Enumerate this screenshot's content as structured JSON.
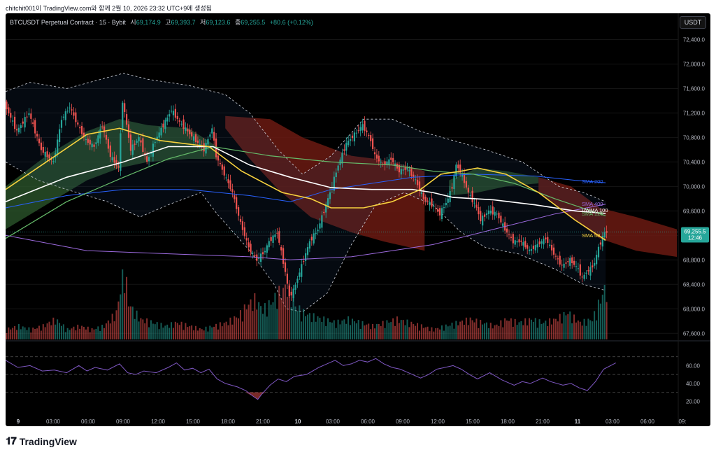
{
  "caption": "chitchit001이 TradingView.com와 함께 2월 10, 2026 23:32 UTC+9에 생성됨",
  "header": {
    "symbol": "BTCUSDT Perpetual Contract · 15 · Bybit",
    "open_label": "시",
    "open": "69,174.9",
    "high_label": "고",
    "high": "69,393.7",
    "low_label": "저",
    "low": "69,123.6",
    "close_label": "종",
    "close": "69,255.5",
    "change": "+80.6 (+0.12%)"
  },
  "currency_button": "USDT",
  "brand": "TradingView",
  "colors": {
    "up": "#26a69a",
    "down": "#ef5350",
    "sma50": "#f7d23e",
    "sma100": "#ffffff",
    "sma120": "#66bb6a",
    "sma200": "#2962ff",
    "sma400": "#9c6ade",
    "rsi": "#7e57c2",
    "bb": "#d1d4dc",
    "cloud_bull": "#2e5a2e",
    "cloud_bear": "#6b1a12"
  },
  "chart_data": {
    "type": "candlestick",
    "symbol": "BTCUSDT",
    "timeframe": "15",
    "price_axis": {
      "ylim": [
        67500,
        72600
      ],
      "ticks": [
        "72,400.0",
        "72,000.0",
        "71,600.0",
        "71,200.0",
        "70,800.0",
        "70,400.0",
        "70,000.0",
        "69,600.0",
        "69,200.0",
        "68,800.0",
        "68,400.0",
        "68,000.0",
        "67,600.0"
      ]
    },
    "time_axis": {
      "ticks": [
        "9",
        "03:00",
        "06:00",
        "09:00",
        "12:00",
        "15:00",
        "18:00",
        "21:00",
        "10",
        "03:00",
        "06:00",
        "09:00",
        "12:00",
        "15:00",
        "18:00",
        "21:00",
        "11",
        "03:00",
        "06:00",
        "09:"
      ]
    },
    "last_price": {
      "value": "69,255.5",
      "countdown": "12:46"
    },
    "indicators": [
      {
        "name": "SMA 200",
        "value": 70060
      },
      {
        "name": "SMA 400",
        "value": 69710
      },
      {
        "name": "VWMA 100",
        "value": 69560
      },
      {
        "name": "SMA 120",
        "value": 69520
      },
      {
        "name": "SMA 50",
        "value": 69120
      }
    ],
    "price_path": [
      [
        0,
        71350
      ],
      [
        6,
        70900
      ],
      [
        12,
        71200
      ],
      [
        18,
        70600
      ],
      [
        24,
        70400
      ],
      [
        28,
        71100
      ],
      [
        32,
        71300
      ],
      [
        36,
        71000
      ],
      [
        40,
        70750
      ],
      [
        44,
        70650
      ],
      [
        48,
        71000
      ],
      [
        52,
        70500
      ],
      [
        56,
        70300
      ],
      [
        58,
        71400
      ],
      [
        62,
        70600
      ],
      [
        66,
        70800
      ],
      [
        70,
        70400
      ],
      [
        74,
        70750
      ],
      [
        78,
        71000
      ],
      [
        82,
        71250
      ],
      [
        86,
        71050
      ],
      [
        90,
        70900
      ],
      [
        94,
        70750
      ],
      [
        98,
        70600
      ],
      [
        102,
        70950
      ],
      [
        104,
        70500
      ],
      [
        108,
        70200
      ],
      [
        112,
        69900
      ],
      [
        116,
        69400
      ],
      [
        120,
        69000
      ],
      [
        124,
        68800
      ],
      [
        128,
        68950
      ],
      [
        130,
        69100
      ],
      [
        134,
        69250
      ],
      [
        138,
        68600
      ],
      [
        140,
        68200
      ],
      [
        142,
        68300
      ],
      [
        146,
        68700
      ],
      [
        150,
        69100
      ],
      [
        154,
        69300
      ],
      [
        158,
        69700
      ],
      [
        160,
        69900
      ],
      [
        164,
        70350
      ],
      [
        168,
        70700
      ],
      [
        172,
        70850
      ],
      [
        176,
        71000
      ],
      [
        180,
        70750
      ],
      [
        182,
        70500
      ],
      [
        186,
        70350
      ],
      [
        190,
        70450
      ],
      [
        194,
        70250
      ],
      [
        198,
        70300
      ],
      [
        202,
        70100
      ],
      [
        206,
        69800
      ],
      [
        210,
        69700
      ],
      [
        214,
        69550
      ],
      [
        218,
        69800
      ],
      [
        220,
        70000
      ],
      [
        222,
        70350
      ],
      [
        224,
        70250
      ],
      [
        228,
        69900
      ],
      [
        232,
        69650
      ],
      [
        234,
        69450
      ],
      [
        238,
        69600
      ],
      [
        242,
        69550
      ],
      [
        246,
        69300
      ],
      [
        250,
        69100
      ],
      [
        254,
        69100
      ],
      [
        258,
        68950
      ],
      [
        262,
        69050
      ],
      [
        266,
        69150
      ],
      [
        270,
        68900
      ],
      [
        274,
        68700
      ],
      [
        278,
        68800
      ],
      [
        282,
        68650
      ],
      [
        284,
        68500
      ],
      [
        286,
        68600
      ],
      [
        288,
        68650
      ],
      [
        290,
        68750
      ],
      [
        292,
        69000
      ],
      [
        295,
        69250
      ]
    ],
    "sma50": [
      [
        0,
        69950
      ],
      [
        20,
        70400
      ],
      [
        40,
        70850
      ],
      [
        56,
        70950
      ],
      [
        76,
        70750
      ],
      [
        100,
        70650
      ],
      [
        116,
        70250
      ],
      [
        136,
        69900
      ],
      [
        150,
        69800
      ],
      [
        160,
        69650
      ],
      [
        176,
        69650
      ],
      [
        190,
        69750
      ],
      [
        204,
        69950
      ],
      [
        214,
        70200
      ],
      [
        224,
        70250
      ],
      [
        232,
        70300
      ],
      [
        246,
        70200
      ],
      [
        262,
        69900
      ],
      [
        280,
        69450
      ],
      [
        295,
        69120
      ]
    ],
    "sma100": [
      [
        0,
        69750
      ],
      [
        30,
        70150
      ],
      [
        58,
        70400
      ],
      [
        80,
        70650
      ],
      [
        102,
        70650
      ],
      [
        120,
        70350
      ],
      [
        140,
        70150
      ],
      [
        160,
        69980
      ],
      [
        180,
        69950
      ],
      [
        200,
        69950
      ],
      [
        210,
        69900
      ],
      [
        220,
        69820
      ],
      [
        240,
        69780
      ],
      [
        260,
        69700
      ],
      [
        280,
        69600
      ],
      [
        295,
        69560
      ]
    ],
    "sma120": [
      [
        0,
        69150
      ],
      [
        30,
        69750
      ],
      [
        58,
        70150
      ],
      [
        80,
        70450
      ],
      [
        102,
        70650
      ],
      [
        130,
        70500
      ],
      [
        160,
        70400
      ],
      [
        190,
        70350
      ],
      [
        210,
        70250
      ],
      [
        230,
        70200
      ],
      [
        250,
        70050
      ],
      [
        270,
        69800
      ],
      [
        295,
        69520
      ]
    ],
    "sma200": [
      [
        0,
        69650
      ],
      [
        30,
        69850
      ],
      [
        58,
        69950
      ],
      [
        90,
        69950
      ],
      [
        120,
        69850
      ],
      [
        140,
        69750
      ],
      [
        160,
        69950
      ],
      [
        180,
        70050
      ],
      [
        200,
        70150
      ],
      [
        230,
        70200
      ],
      [
        260,
        70170
      ],
      [
        280,
        70100
      ],
      [
        295,
        70060
      ]
    ],
    "sma400": [
      [
        0,
        69200
      ],
      [
        40,
        68950
      ],
      [
        80,
        68900
      ],
      [
        120,
        68850
      ],
      [
        140,
        68800
      ],
      [
        170,
        68850
      ],
      [
        190,
        68950
      ],
      [
        210,
        69050
      ],
      [
        240,
        69300
      ],
      [
        270,
        69550
      ],
      [
        295,
        69710
      ]
    ],
    "bb_upper": [
      [
        0,
        71550
      ],
      [
        12,
        71700
      ],
      [
        30,
        71600
      ],
      [
        58,
        71850
      ],
      [
        70,
        71750
      ],
      [
        90,
        71650
      ],
      [
        108,
        71500
      ],
      [
        120,
        71200
      ],
      [
        134,
        70600
      ],
      [
        146,
        70200
      ],
      [
        160,
        70500
      ],
      [
        176,
        71100
      ],
      [
        190,
        71100
      ],
      [
        204,
        70900
      ],
      [
        220,
        70750
      ],
      [
        236,
        70600
      ],
      [
        254,
        70400
      ],
      [
        272,
        70000
      ],
      [
        284,
        69900
      ],
      [
        295,
        69750
      ]
    ],
    "bb_lower": [
      [
        0,
        70400
      ],
      [
        16,
        70100
      ],
      [
        30,
        69950
      ],
      [
        50,
        69750
      ],
      [
        66,
        69500
      ],
      [
        80,
        69700
      ],
      [
        96,
        69900
      ],
      [
        104,
        69550
      ],
      [
        120,
        68950
      ],
      [
        132,
        68400
      ],
      [
        138,
        68000
      ],
      [
        146,
        67950
      ],
      [
        158,
        68250
      ],
      [
        170,
        69050
      ],
      [
        182,
        69700
      ],
      [
        196,
        69900
      ],
      [
        210,
        69700
      ],
      [
        224,
        69250
      ],
      [
        236,
        69000
      ],
      [
        252,
        68900
      ],
      [
        270,
        68650
      ],
      [
        284,
        68400
      ],
      [
        295,
        68300
      ]
    ],
    "cloud": [
      {
        "kind": "bull",
        "top": [
          [
            0,
            70000
          ],
          [
            20,
            70500
          ],
          [
            40,
            70900
          ],
          [
            56,
            71100
          ],
          [
            70,
            71000
          ],
          [
            90,
            70950
          ],
          [
            104,
            70650
          ]
        ],
        "bot": [
          [
            0,
            69300
          ],
          [
            20,
            69700
          ],
          [
            40,
            70100
          ],
          [
            56,
            70300
          ],
          [
            70,
            70400
          ],
          [
            90,
            70450
          ],
          [
            104,
            70450
          ]
        ]
      },
      {
        "kind": "bear",
        "top": [
          [
            108,
            71150
          ],
          [
            130,
            71100
          ],
          [
            146,
            70800
          ],
          [
            158,
            70650
          ],
          [
            170,
            70500
          ],
          [
            182,
            70450
          ],
          [
            196,
            70350
          ],
          [
            206,
            70250
          ]
        ],
        "bot": [
          [
            108,
            70950
          ],
          [
            120,
            70450
          ],
          [
            134,
            69950
          ],
          [
            150,
            69500
          ],
          [
            170,
            69250
          ],
          [
            186,
            69100
          ],
          [
            206,
            68950
          ]
        ]
      },
      {
        "kind": "bull",
        "top": [
          [
            218,
            70100
          ],
          [
            232,
            70300
          ],
          [
            246,
            70250
          ],
          [
            262,
            70150
          ]
        ],
        "bot": [
          [
            218,
            69850
          ],
          [
            232,
            69900
          ],
          [
            246,
            70000
          ],
          [
            262,
            70050
          ]
        ]
      },
      {
        "kind": "bear",
        "top": [
          [
            262,
            70150
          ],
          [
            278,
            70000
          ],
          [
            292,
            69650
          ],
          [
            310,
            69500
          ],
          [
            330,
            69300
          ]
        ],
        "bot": [
          [
            262,
            69900
          ],
          [
            278,
            69500
          ],
          [
            292,
            69150
          ],
          [
            310,
            68950
          ],
          [
            330,
            68850
          ]
        ]
      }
    ],
    "volume": [
      [
        0,
        3
      ],
      [
        6,
        4
      ],
      [
        12,
        3
      ],
      [
        18,
        4
      ],
      [
        24,
        6
      ],
      [
        30,
        3
      ],
      [
        36,
        4
      ],
      [
        42,
        3
      ],
      [
        48,
        4
      ],
      [
        54,
        8
      ],
      [
        58,
        22
      ],
      [
        60,
        11
      ],
      [
        62,
        9
      ],
      [
        66,
        6
      ],
      [
        72,
        5
      ],
      [
        78,
        4
      ],
      [
        84,
        5
      ],
      [
        90,
        4
      ],
      [
        96,
        3
      ],
      [
        102,
        4
      ],
      [
        108,
        5
      ],
      [
        114,
        7
      ],
      [
        118,
        10
      ],
      [
        122,
        12
      ],
      [
        126,
        9
      ],
      [
        130,
        11
      ],
      [
        134,
        14
      ],
      [
        138,
        16
      ],
      [
        142,
        10
      ],
      [
        146,
        8
      ],
      [
        150,
        7
      ],
      [
        156,
        6
      ],
      [
        162,
        5
      ],
      [
        168,
        6
      ],
      [
        174,
        5
      ],
      [
        180,
        4
      ],
      [
        186,
        5
      ],
      [
        192,
        6
      ],
      [
        198,
        5
      ],
      [
        204,
        4
      ],
      [
        210,
        3
      ],
      [
        216,
        4
      ],
      [
        222,
        5
      ],
      [
        228,
        6
      ],
      [
        234,
        5
      ],
      [
        240,
        4
      ],
      [
        246,
        6
      ],
      [
        252,
        5
      ],
      [
        258,
        6
      ],
      [
        264,
        5
      ],
      [
        270,
        6
      ],
      [
        276,
        8
      ],
      [
        282,
        5
      ],
      [
        288,
        6
      ],
      [
        294,
        15
      ]
    ],
    "rsi": {
      "yticks": [
        "60.00",
        "40.00",
        "20.00"
      ],
      "ylim": [
        10,
        80
      ],
      "levels": [
        70,
        50,
        30
      ],
      "path": [
        [
          0,
          66
        ],
        [
          6,
          58
        ],
        [
          12,
          60
        ],
        [
          18,
          54
        ],
        [
          24,
          55
        ],
        [
          30,
          52
        ],
        [
          36,
          60
        ],
        [
          40,
          54
        ],
        [
          44,
          58
        ],
        [
          50,
          55
        ],
        [
          56,
          62
        ],
        [
          60,
          52
        ],
        [
          64,
          50
        ],
        [
          68,
          54
        ],
        [
          74,
          52
        ],
        [
          80,
          58
        ],
        [
          84,
          63
        ],
        [
          88,
          55
        ],
        [
          92,
          57
        ],
        [
          96,
          52
        ],
        [
          100,
          56
        ],
        [
          104,
          45
        ],
        [
          108,
          40
        ],
        [
          114,
          36
        ],
        [
          118,
          32
        ],
        [
          122,
          25
        ],
        [
          124,
          22
        ],
        [
          126,
          28
        ],
        [
          130,
          38
        ],
        [
          134,
          45
        ],
        [
          138,
          42
        ],
        [
          142,
          48
        ],
        [
          148,
          50
        ],
        [
          154,
          58
        ],
        [
          158,
          62
        ],
        [
          162,
          66
        ],
        [
          166,
          60
        ],
        [
          170,
          62
        ],
        [
          174,
          66
        ],
        [
          178,
          64
        ],
        [
          182,
          68
        ],
        [
          186,
          62
        ],
        [
          190,
          58
        ],
        [
          194,
          56
        ],
        [
          198,
          52
        ],
        [
          204,
          46
        ],
        [
          208,
          50
        ],
        [
          212,
          56
        ],
        [
          216,
          58
        ],
        [
          220,
          60
        ],
        [
          224,
          56
        ],
        [
          228,
          50
        ],
        [
          232,
          45
        ],
        [
          238,
          52
        ],
        [
          244,
          44
        ],
        [
          250,
          38
        ],
        [
          254,
          42
        ],
        [
          258,
          40
        ],
        [
          264,
          46
        ],
        [
          268,
          42
        ],
        [
          274,
          38
        ],
        [
          278,
          40
        ],
        [
          282,
          35
        ],
        [
          286,
          32
        ],
        [
          290,
          42
        ],
        [
          294,
          56
        ],
        [
          300,
          63
        ]
      ]
    }
  }
}
